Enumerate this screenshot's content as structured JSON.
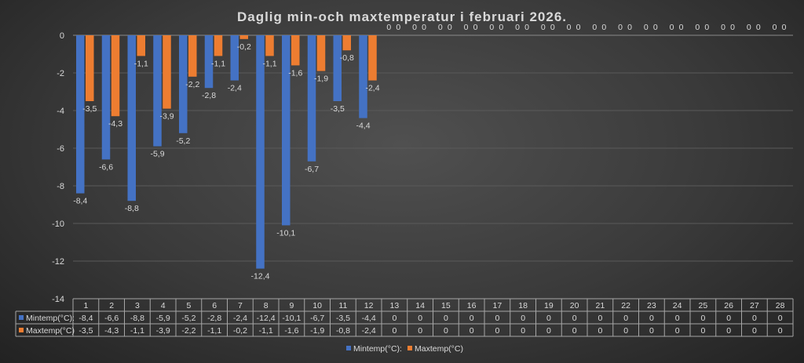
{
  "chart_data": {
    "type": "bar",
    "title": "Daglig min-och maxtemperatur i februari 2026.",
    "categories": [
      "1",
      "2",
      "3",
      "4",
      "5",
      "6",
      "7",
      "8",
      "9",
      "10",
      "11",
      "12",
      "13",
      "14",
      "15",
      "16",
      "17",
      "18",
      "19",
      "20",
      "21",
      "22",
      "23",
      "24",
      "25",
      "26",
      "27",
      "28"
    ],
    "series": [
      {
        "name": "Mintemp(°C):",
        "color": "#4472c4",
        "values": [
          -8.4,
          -6.6,
          -8.8,
          -5.9,
          -5.2,
          -2.8,
          -2.4,
          -12.4,
          -10.1,
          -6.7,
          -3.5,
          -4.4,
          0,
          0,
          0,
          0,
          0,
          0,
          0,
          0,
          0,
          0,
          0,
          0,
          0,
          0,
          0,
          0
        ]
      },
      {
        "name": "Maxtemp(°C)",
        "color": "#ed7d31",
        "values": [
          -3.5,
          -4.3,
          -1.1,
          -3.9,
          -2.2,
          -1.1,
          -0.2,
          -1.1,
          -1.6,
          -1.9,
          -0.8,
          -2.4,
          0,
          0,
          0,
          0,
          0,
          0,
          0,
          0,
          0,
          0,
          0,
          0,
          0,
          0,
          0,
          0
        ]
      }
    ],
    "ylim": [
      -14,
      0
    ],
    "yticks": [
      0,
      -2,
      -4,
      -6,
      -8,
      -10,
      -12,
      -14
    ],
    "grid": true,
    "data_labels": true,
    "data_table": true,
    "legend": "bottom",
    "decimal_separator": ","
  }
}
